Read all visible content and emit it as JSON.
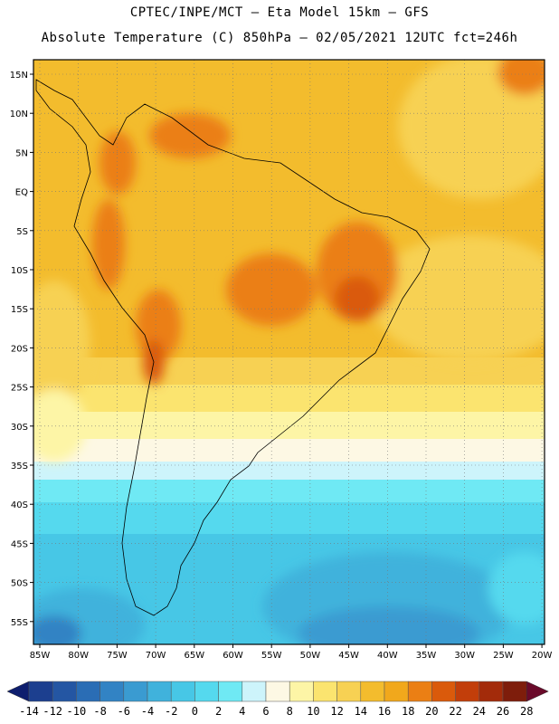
{
  "header": {
    "line1": "CPTEC/INPE/MCT –  Eta Model 15km – GFS",
    "line2": "Absolute Temperature (C) 850hPa – 02/05/2021 12UTC fct=246h"
  },
  "map": {
    "lat_labels": [
      "15N",
      "10N",
      "5N",
      "EQ",
      "5S",
      "10S",
      "15S",
      "20S",
      "25S",
      "30S",
      "35S",
      "40S",
      "45S",
      "50S",
      "55S"
    ],
    "lon_labels": [
      "85W",
      "80W",
      "75W",
      "70W",
      "65W",
      "60W",
      "55W",
      "50W",
      "45W",
      "40W",
      "35W",
      "30W",
      "25W",
      "20W"
    ]
  },
  "legend": {
    "labels": [
      "-14",
      "-12",
      "-10",
      "-8",
      "-6",
      "-4",
      "-2",
      "0",
      "2",
      "4",
      "6",
      "8",
      "10",
      "12",
      "14",
      "16",
      "18",
      "20",
      "22",
      "24",
      "26",
      "28"
    ],
    "colors": [
      "#1c3f8f",
      "#2456a3",
      "#2a6db5",
      "#3283c4",
      "#3a9bd1",
      "#40b2dc",
      "#47c7e6",
      "#55d9ee",
      "#6fe9f4",
      "#cdf4fb",
      "#fdf8e4",
      "#fdf5a6",
      "#fbe46f",
      "#f7d153",
      "#f3bc2d",
      "#f1a81c",
      "#eb7f14",
      "#da5a0b",
      "#c23e0a",
      "#a32b0a",
      "#7e1d0b"
    ],
    "low_arrow_color": "#0e1e6e",
    "high_arrow_color": "#6a0a2a"
  }
}
